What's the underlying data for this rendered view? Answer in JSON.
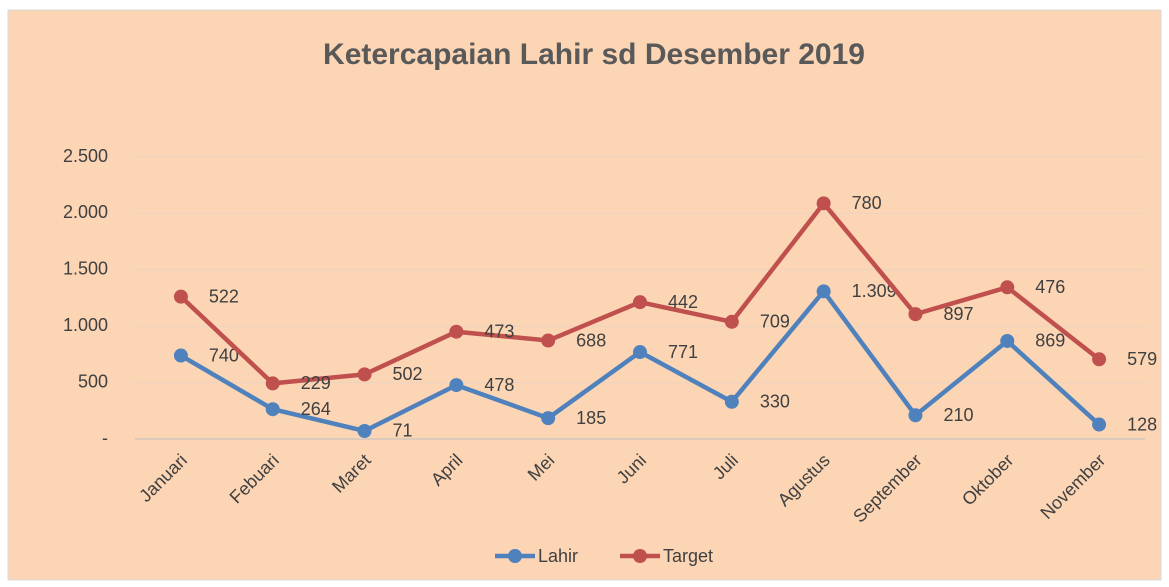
{
  "chart_data": {
    "type": "line",
    "stacked": true,
    "title": "Ketercapaian Lahir sd Desember 2019",
    "categories": [
      "Januari",
      "Febuari",
      "Maret",
      "April",
      "Mei",
      "Juni",
      "Juli",
      "Agustus",
      "September",
      "Oktober",
      "November"
    ],
    "series": [
      {
        "name": "Lahir",
        "color": "#4f81bd",
        "values": [
          740,
          264,
          71,
          478,
          185,
          771,
          330,
          1309,
          210,
          869,
          128
        ],
        "value_labels": [
          "740",
          "264",
          "71",
          "478",
          "185",
          "771",
          "330",
          "1.309",
          "210",
          "869",
          "128"
        ]
      },
      {
        "name": "Target",
        "color": "#c0504d",
        "values": [
          522,
          229,
          502,
          473,
          688,
          442,
          709,
          780,
          897,
          476,
          579
        ]
      }
    ],
    "ylim": [
      0,
      2500
    ],
    "yticks": [
      {
        "value": 0,
        "label": "-"
      },
      500,
      {
        "value": 1000,
        "label": "1.000"
      },
      {
        "value": 1500,
        "label": "1.500"
      },
      {
        "value": 2000,
        "label": "2.000"
      },
      {
        "value": 2500,
        "label": "2.500"
      }
    ],
    "grid": true,
    "legend": "bottom"
  }
}
